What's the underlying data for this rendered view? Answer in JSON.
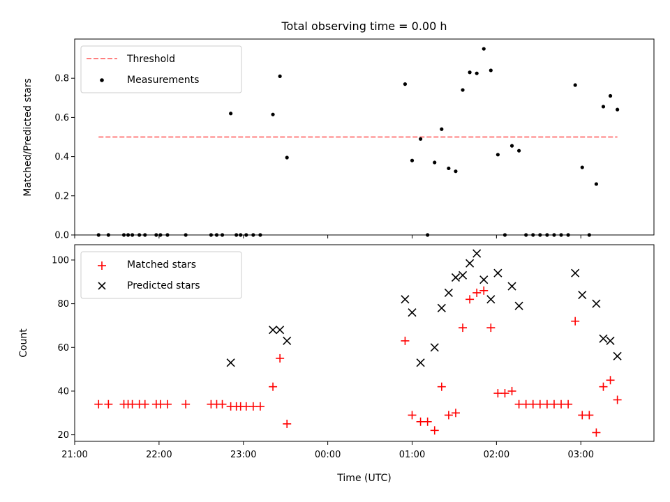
{
  "chart_data": [
    {
      "type": "scatter",
      "title": "Total observing time = 0.00 h",
      "xlabel": "",
      "ylabel": "Matched/Predicted stars",
      "xlim": [
        -180,
        232
      ],
      "ylim": [
        0,
        1.0
      ],
      "yticks": [
        0.0,
        0.2,
        0.4,
        0.6,
        0.8
      ],
      "ytick_labels": [
        "0.0",
        "0.2",
        "0.4",
        "0.6",
        "0.8"
      ],
      "xticks": [
        -180,
        -120,
        -60,
        0,
        60,
        120,
        180
      ],
      "xtick_labels": [
        "",
        "",
        "",
        "",
        "",
        "",
        ""
      ],
      "legend": {
        "position": "upper left",
        "entries": [
          "Threshold",
          "Measurements"
        ]
      },
      "threshold": {
        "name": "Threshold",
        "y": 0.5,
        "x_range": [
          -163,
          206
        ],
        "color": "#ff7f7f",
        "style": "dashed"
      },
      "series": [
        {
          "name": "Measurements",
          "color": "#000000",
          "x": [
            -163,
            -156,
            -145,
            -142,
            -139,
            -134,
            -130,
            -122,
            -119,
            -114,
            -101,
            -83,
            -79,
            -75,
            -69,
            -65,
            -62,
            -58,
            -53,
            -48,
            -39,
            -34,
            -29,
            55,
            60,
            66,
            71,
            76,
            81,
            86,
            91,
            96,
            101,
            106,
            111,
            116,
            121,
            126,
            131,
            136,
            141,
            146,
            151,
            156,
            161,
            166,
            171,
            176,
            181,
            186,
            191,
            196,
            201,
            206
          ],
          "y": [
            0.0,
            0.0,
            0.0,
            0.0,
            0.0,
            0.0,
            0.0,
            0.0,
            0.0,
            0.0,
            0.0,
            0.0,
            0.0,
            0.0,
            0.62,
            0.0,
            0.0,
            0.0,
            0.0,
            0.0,
            0.615,
            0.81,
            0.395,
            0.77,
            0.38,
            0.49,
            0.0,
            0.37,
            0.54,
            0.34,
            0.325,
            0.74,
            0.83,
            0.825,
            0.95,
            0.84,
            0.41,
            0.0,
            0.455,
            0.43,
            0.0,
            0.0,
            0.0,
            0.0,
            0.0,
            0.0,
            0.0,
            0.765,
            0.345,
            0.0,
            0.26,
            0.655,
            0.71,
            0.64
          ]
        }
      ]
    },
    {
      "type": "scatter",
      "title": "",
      "xlabel": "Time (UTC)",
      "ylabel": "Count",
      "xlim": [
        -180,
        232
      ],
      "ylim": [
        17,
        107
      ],
      "yticks": [
        20,
        40,
        60,
        80,
        100
      ],
      "ytick_labels": [
        "20",
        "40",
        "60",
        "80",
        "100"
      ],
      "xticks": [
        -180,
        -120,
        -60,
        0,
        60,
        120,
        180
      ],
      "xtick_labels": [
        "21:00",
        "22:00",
        "23:00",
        "00:00",
        "01:00",
        "02:00",
        "03:00"
      ],
      "legend": {
        "position": "upper left",
        "entries": [
          "Matched stars",
          "Predicted stars"
        ]
      },
      "series": [
        {
          "name": "Matched stars",
          "color": "#ff0000",
          "marker": "+",
          "x": [
            -163,
            -156,
            -145,
            -142,
            -139,
            -134,
            -130,
            -122,
            -119,
            -114,
            -101,
            -83,
            -79,
            -75,
            -69,
            -65,
            -62,
            -58,
            -53,
            -48,
            -39,
            -34,
            -29,
            55,
            60,
            66,
            71,
            76,
            81,
            86,
            91,
            96,
            101,
            106,
            111,
            116,
            121,
            126,
            131,
            136,
            141,
            146,
            151,
            156,
            161,
            166,
            171,
            176,
            181,
            186,
            191,
            196,
            201,
            206
          ],
          "y": [
            34,
            34,
            34,
            34,
            34,
            34,
            34,
            34,
            34,
            34,
            34,
            34,
            34,
            34,
            33,
            33,
            33,
            33,
            33,
            33,
            42,
            55,
            25,
            63,
            29,
            26,
            26,
            22,
            42,
            29,
            30,
            69,
            82,
            85,
            86,
            69,
            39,
            39,
            40,
            34,
            34,
            34,
            34,
            34,
            34,
            34,
            34,
            72,
            29,
            29,
            21,
            42,
            45,
            36
          ]
        },
        {
          "name": "Predicted stars",
          "color": "#000000",
          "marker": "x",
          "x": [
            -69,
            -39,
            -34,
            -29,
            55,
            60,
            66,
            76,
            81,
            86,
            91,
            96,
            101,
            106,
            111,
            116,
            121,
            131,
            136,
            176,
            181,
            191,
            196,
            201,
            206
          ],
          "y": [
            53,
            68,
            68,
            63,
            82,
            76,
            53,
            60,
            78,
            85,
            92,
            93,
            98.5,
            103,
            91,
            82,
            94,
            88,
            79,
            94,
            84,
            80,
            64,
            63,
            56
          ]
        }
      ]
    }
  ]
}
